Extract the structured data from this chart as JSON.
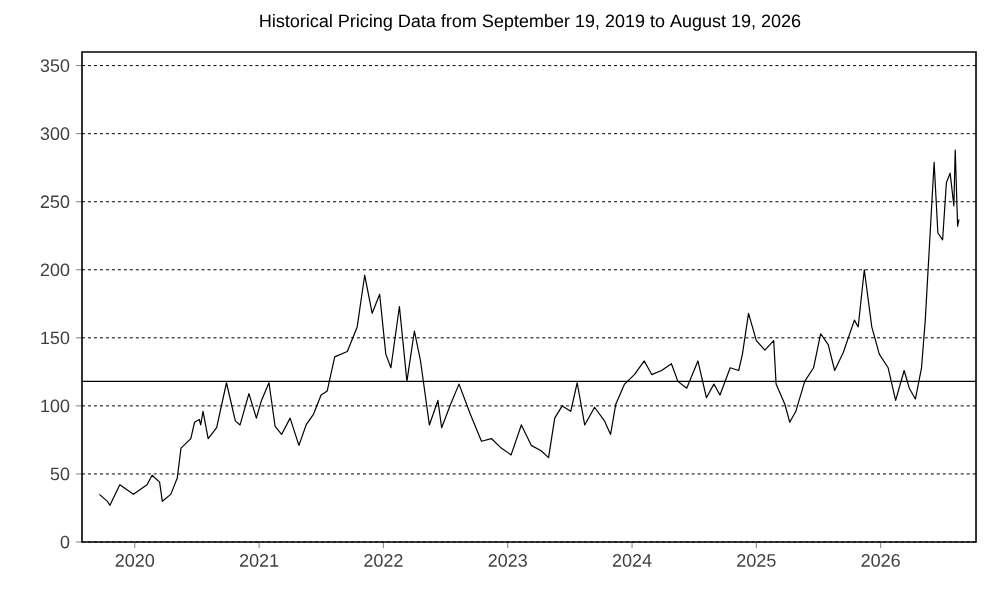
{
  "chart_data": {
    "type": "line",
    "title": "Historical Pricing Data from September 19, 2019 to August 19, 2026",
    "x": [
      "2019-09-19",
      "2019-10-12",
      "2019-10-20",
      "2019-11-18",
      "2019-12-28",
      "2020-02-06",
      "2020-02-21",
      "2020-03-14",
      "2020-03-22",
      "2020-04-16",
      "2020-05-05",
      "2020-05-16",
      "2020-06-14",
      "2020-06-25",
      "2020-07-09",
      "2020-07-13",
      "2020-07-20",
      "2020-08-04",
      "2020-08-29",
      "2020-09-27",
      "2020-10-23",
      "2020-11-06",
      "2020-12-02",
      "2020-12-24",
      "2021-01-08",
      "2021-01-30",
      "2021-02-17",
      "2021-03-08",
      "2021-04-02",
      "2021-04-28",
      "2021-05-19",
      "2021-06-10",
      "2021-07-02",
      "2021-07-20",
      "2021-08-11",
      "2021-09-17",
      "2021-10-16",
      "2021-11-07",
      "2021-11-29",
      "2021-12-21",
      "2022-01-08",
      "2022-01-23",
      "2022-02-17",
      "2022-03-11",
      "2022-04-02",
      "2022-04-20",
      "2022-05-16",
      "2022-06-10",
      "2022-06-21",
      "2022-07-17",
      "2022-08-11",
      "2022-09-13",
      "2022-10-16",
      "2022-11-14",
      "2022-12-13",
      "2023-01-11",
      "2023-02-10",
      "2023-03-11",
      "2023-04-09",
      "2023-05-01",
      "2023-05-19",
      "2023-06-10",
      "2023-07-05",
      "2023-07-24",
      "2023-08-15",
      "2023-09-13",
      "2023-10-12",
      "2023-10-30",
      "2023-11-14",
      "2023-12-10",
      "2024-01-08",
      "2024-02-06",
      "2024-02-28",
      "2024-03-28",
      "2024-04-26",
      "2024-05-15",
      "2024-06-10",
      "2024-07-13",
      "2024-08-07",
      "2024-08-29",
      "2024-09-16",
      "2024-10-16",
      "2024-11-10",
      "2024-11-21",
      "2024-12-09",
      "2025-01-01",
      "2025-01-26",
      "2025-02-21",
      "2025-02-28",
      "2025-03-26",
      "2025-04-09",
      "2025-04-27",
      "2025-05-23",
      "2025-06-18",
      "2025-07-09",
      "2025-07-31",
      "2025-08-19",
      "2025-09-13",
      "2025-10-16",
      "2025-10-27",
      "2025-11-14",
      "2025-12-06",
      "2025-12-28",
      "2026-01-23",
      "2026-02-14",
      "2026-03-11",
      "2026-03-26",
      "2026-04-13",
      "2026-05-01",
      "2026-05-12",
      "2026-05-23",
      "2026-06-07",
      "2026-06-18",
      "2026-07-02",
      "2026-07-13",
      "2026-07-24",
      "2026-08-04",
      "2026-08-08",
      "2026-08-15",
      "2026-08-19"
    ],
    "values": [
      35,
      30,
      27,
      42,
      35,
      42,
      49,
      44,
      30,
      35,
      47,
      69,
      76,
      88,
      90,
      86,
      96,
      76,
      84,
      117,
      89,
      86,
      109,
      91,
      104,
      117,
      85,
      79,
      91,
      71,
      86,
      94,
      108,
      111,
      136,
      140,
      158,
      196,
      168,
      182,
      138,
      128,
      173,
      118,
      155,
      133,
      86,
      104,
      84,
      101,
      116,
      94,
      74,
      76,
      69,
      64,
      86,
      71,
      67,
      62,
      91,
      100,
      96,
      117,
      86,
      99,
      89,
      79,
      101,
      116,
      123,
      133,
      123,
      126,
      131,
      118,
      113,
      133,
      106,
      116,
      108,
      128,
      126,
      138,
      168,
      148,
      141,
      148,
      116,
      101,
      88,
      96,
      118,
      128,
      153,
      145,
      126,
      139,
      163,
      158,
      200,
      158,
      138,
      128,
      104,
      126,
      113,
      105,
      128,
      163,
      212,
      279,
      227,
      222,
      264,
      271,
      247,
      288,
      232,
      237
    ],
    "color": "#000000",
    "xlim": [
      "2019-07-30",
      "2026-10-08"
    ],
    "xticks": [
      "2020",
      "2021",
      "2022",
      "2023",
      "2024",
      "2025",
      "2026"
    ],
    "ylim": [
      0,
      360
    ],
    "yticks": [
      0,
      50,
      100,
      150,
      200,
      250,
      300,
      350
    ],
    "grid": "y",
    "ref_lines": [
      {
        "axis": "y",
        "value": 118
      }
    ]
  }
}
